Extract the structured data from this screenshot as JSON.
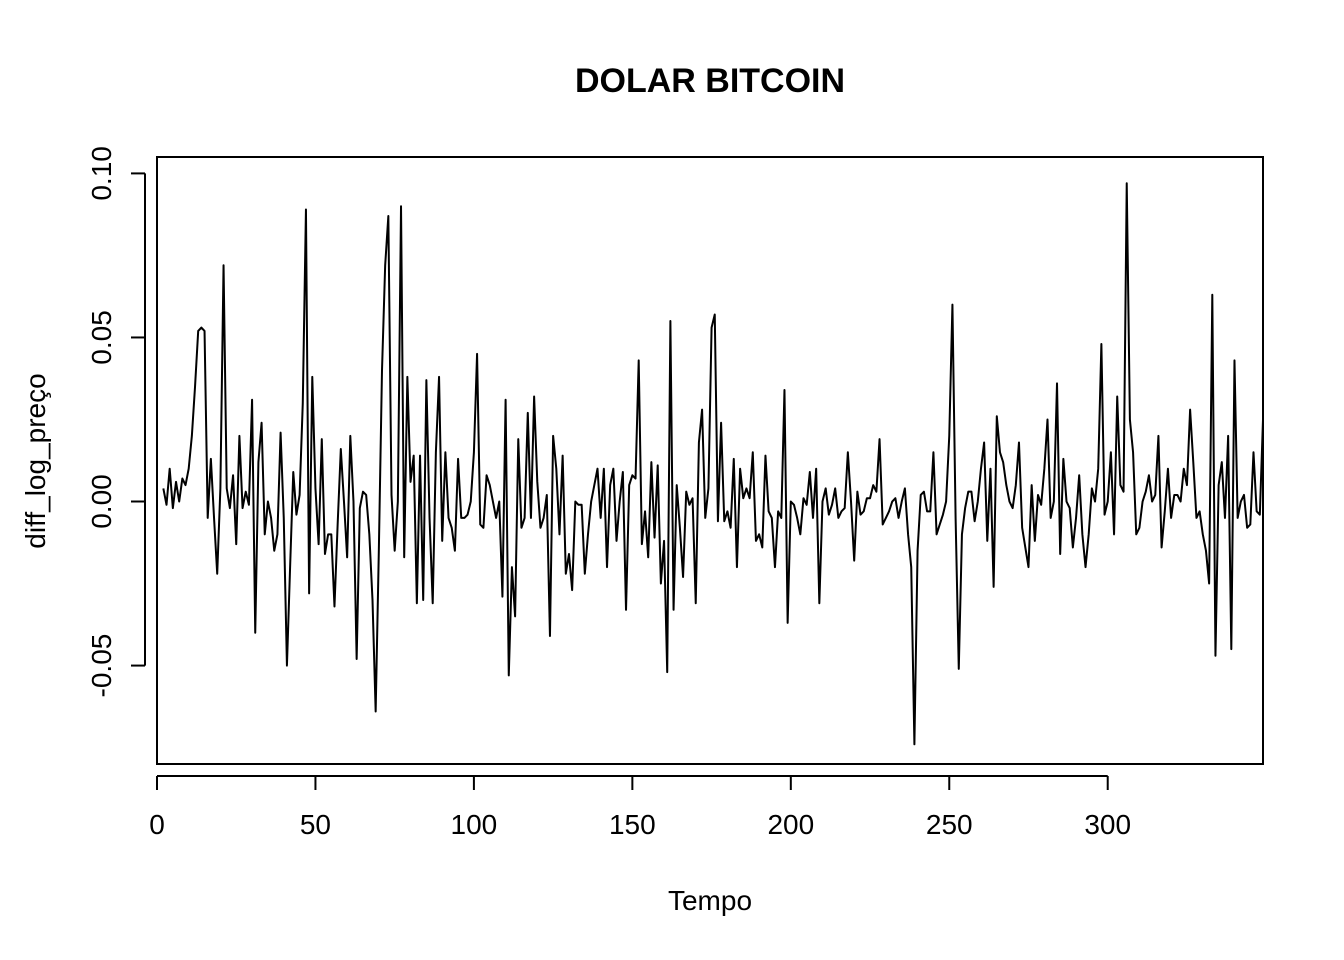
{
  "chart_data": {
    "type": "line",
    "title": "DOLAR BITCOIN",
    "xlabel": "Tempo",
    "ylabel": "diff_log_preço",
    "xlim": [
      0,
      349
    ],
    "ylim": [
      -0.08,
      0.105
    ],
    "x_ticks": [
      0,
      50,
      100,
      150,
      200,
      250,
      300
    ],
    "y_ticks": [
      -0.05,
      0.0,
      0.05,
      0.1
    ],
    "x_tick_labels": [
      "0",
      "50",
      "100",
      "150",
      "200",
      "250",
      "300"
    ],
    "y_tick_labels": [
      "-0.05",
      "0.00",
      "0.05",
      "0.10"
    ],
    "grid": false,
    "legend": "none",
    "series": [
      {
        "color": "#000000",
        "x_start": 2,
        "x_step": 1,
        "values": [
          0.004,
          -0.001,
          0.01,
          -0.002,
          0.006,
          0.0,
          0.007,
          0.005,
          0.01,
          0.02,
          0.035,
          0.052,
          0.053,
          0.052,
          -0.005,
          0.013,
          -0.005,
          -0.022,
          0.004,
          0.072,
          0.004,
          -0.002,
          0.008,
          -0.013,
          0.02,
          -0.002,
          0.003,
          -0.001,
          0.031,
          -0.04,
          0.012,
          0.024,
          -0.01,
          0.0,
          -0.005,
          -0.015,
          -0.01,
          0.021,
          -0.005,
          -0.05,
          -0.02,
          0.009,
          -0.004,
          0.002,
          0.03,
          0.089,
          -0.028,
          0.038,
          0.004,
          -0.013,
          0.019,
          -0.016,
          -0.01,
          -0.01,
          -0.032,
          -0.007,
          0.016,
          0.0,
          -0.017,
          0.02,
          0.0,
          -0.048,
          -0.002,
          0.003,
          0.002,
          -0.01,
          -0.03,
          -0.064,
          -0.015,
          0.04,
          0.072,
          0.087,
          0.002,
          -0.015,
          0.0,
          0.09,
          -0.017,
          0.038,
          0.006,
          0.014,
          -0.031,
          0.014,
          -0.03,
          0.037,
          -0.005,
          -0.031,
          0.015,
          0.038,
          -0.012,
          0.015,
          -0.005,
          -0.008,
          -0.015,
          0.013,
          -0.005,
          -0.005,
          -0.004,
          0.0,
          0.015,
          0.045,
          -0.007,
          -0.008,
          0.008,
          0.005,
          0.0,
          -0.005,
          0.0,
          -0.029,
          0.031,
          -0.053,
          -0.02,
          -0.035,
          0.019,
          -0.008,
          -0.005,
          0.027,
          -0.005,
          0.032,
          0.006,
          -0.008,
          -0.005,
          0.002,
          -0.041,
          0.02,
          0.01,
          -0.01,
          0.014,
          -0.022,
          -0.016,
          -0.027,
          0.0,
          -0.001,
          -0.001,
          -0.022,
          -0.01,
          0.0,
          0.005,
          0.01,
          -0.005,
          0.01,
          -0.02,
          0.005,
          0.01,
          -0.012,
          0.0,
          0.009,
          -0.033,
          0.005,
          0.008,
          0.007,
          0.043,
          -0.013,
          -0.003,
          -0.017,
          0.012,
          -0.011,
          0.011,
          -0.025,
          -0.012,
          -0.052,
          0.055,
          -0.033,
          0.005,
          -0.008,
          -0.023,
          0.003,
          -0.001,
          0.001,
          -0.031,
          0.018,
          0.028,
          -0.005,
          0.004,
          0.053,
          0.057,
          -0.006,
          0.024,
          -0.006,
          -0.003,
          -0.008,
          0.013,
          -0.02,
          0.01,
          0.001,
          0.004,
          0.001,
          0.015,
          -0.012,
          -0.01,
          -0.014,
          0.014,
          -0.003,
          -0.005,
          -0.02,
          -0.003,
          -0.005,
          0.034,
          -0.037,
          0.0,
          -0.001,
          -0.005,
          -0.01,
          0.001,
          -0.001,
          0.009,
          -0.005,
          0.01,
          -0.031,
          0.0,
          0.004,
          -0.004,
          -0.001,
          0.004,
          -0.005,
          -0.003,
          -0.002,
          0.015,
          0.0,
          -0.018,
          0.003,
          -0.004,
          -0.003,
          0.001,
          0.001,
          0.005,
          0.003,
          0.019,
          -0.007,
          -0.005,
          -0.003,
          0.0,
          0.001,
          -0.005,
          0.0,
          0.004,
          -0.01,
          -0.02,
          -0.074,
          -0.015,
          0.002,
          0.003,
          -0.003,
          -0.003,
          0.015,
          -0.01,
          -0.007,
          -0.004,
          0.0,
          0.02,
          0.06,
          -0.005,
          -0.051,
          -0.01,
          -0.002,
          0.003,
          0.003,
          -0.006,
          0.0,
          0.01,
          0.018,
          -0.012,
          0.01,
          -0.026,
          0.026,
          0.015,
          0.012,
          0.005,
          0.0,
          -0.002,
          0.005,
          0.018,
          -0.008,
          -0.014,
          -0.02,
          0.005,
          -0.012,
          0.002,
          -0.001,
          0.01,
          0.025,
          -0.005,
          0.0,
          0.036,
          -0.016,
          0.013,
          0.0,
          -0.002,
          -0.014,
          -0.005,
          0.008,
          -0.01,
          -0.02,
          -0.01,
          0.004,
          0.0,
          0.01,
          0.048,
          -0.004,
          0.0,
          0.015,
          -0.01,
          0.032,
          0.005,
          0.003,
          0.097,
          0.025,
          0.015,
          -0.01,
          -0.008,
          0.0,
          0.003,
          0.008,
          0.0,
          0.002,
          0.02,
          -0.014,
          -0.003,
          0.01,
          -0.005,
          0.002,
          0.002,
          0.0,
          0.01,
          0.005,
          0.028,
          0.012,
          -0.005,
          -0.003,
          -0.01,
          -0.015,
          -0.025,
          0.063,
          -0.047,
          0.005,
          0.012,
          -0.005,
          0.02,
          -0.045,
          0.043,
          -0.005,
          0.0,
          0.002,
          -0.008,
          -0.007,
          0.015,
          -0.003,
          -0.004,
          0.025
        ]
      }
    ]
  }
}
